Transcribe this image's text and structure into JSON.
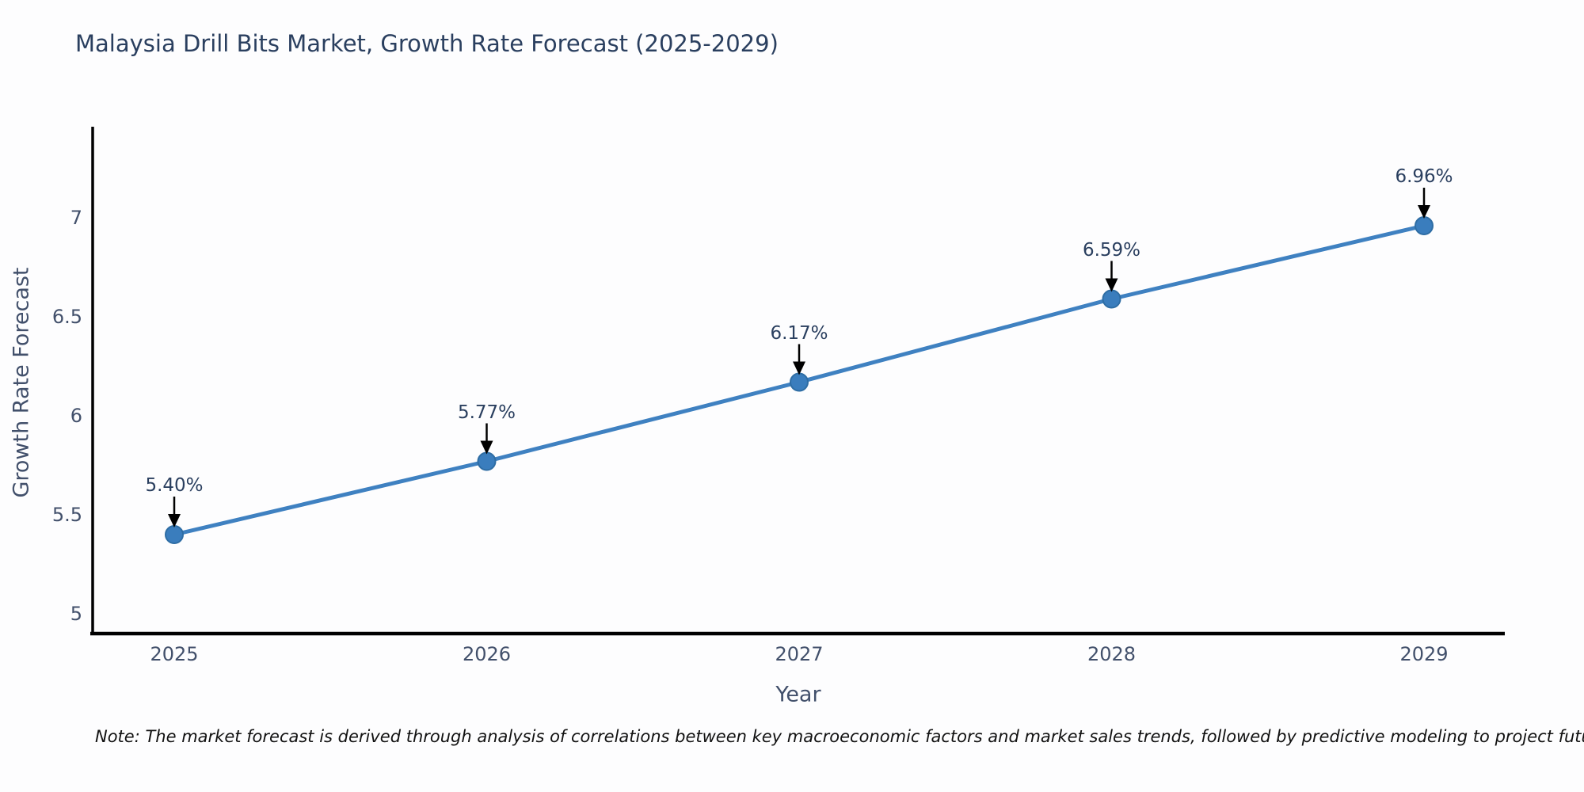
{
  "title": {
    "text": "Malaysia Drill Bits Market, Growth Rate Forecast (2025-2029)",
    "color": "#2a3f5f"
  },
  "note": {
    "text": "Note: The market forecast is derived through analysis of correlations between key macroeconomic factors and market sales trends, followed by predictive modeling to project future sales"
  },
  "chart_data": {
    "type": "line",
    "title": "Malaysia Drill Bits Market, Growth Rate Forecast (2025-2029)",
    "xlabel": "Year",
    "ylabel": "Growth Rate Forecast",
    "categories": [
      "2025",
      "2026",
      "2027",
      "2028",
      "2029"
    ],
    "values": [
      5.4,
      5.77,
      6.17,
      6.59,
      6.96
    ],
    "point_labels": [
      "5.40%",
      "5.77%",
      "6.17%",
      "6.59%",
      "6.96%"
    ],
    "yticks": [
      5,
      5.5,
      6,
      6.5,
      7
    ],
    "ytick_labels": [
      "5",
      "5.5",
      "6",
      "6.5",
      "7"
    ],
    "ylim": [
      4.9,
      7.46
    ],
    "grid": false,
    "legend": "none",
    "annotations": "arrow-down-to-point",
    "colors": {
      "line": "#3f81c1",
      "marker": "#3a7dbd",
      "marker_stroke": "#2e6da4",
      "axis_line": "#000000",
      "arrow": "#000000",
      "tick_text": "#42506b",
      "title_text": "#2a3f5f"
    }
  }
}
